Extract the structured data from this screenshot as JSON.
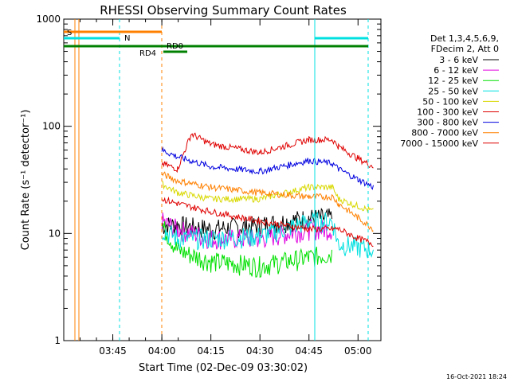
{
  "chart_data": {
    "type": "line",
    "title": "RHESSI Observing Summary Count Rates",
    "xlabel": "Start Time (02-Dec-09 03:30:02)",
    "ylabel": "Count Rate (s⁻¹ detector⁻¹)",
    "yscale": "log",
    "ylim": [
      1,
      1000
    ],
    "xlim": [
      "03:30",
      "05:07"
    ],
    "x_ticks": [
      "03:45",
      "04:00",
      "04:15",
      "04:30",
      "04:45",
      "05:00"
    ],
    "y_ticks": [
      "1",
      "10",
      "100",
      "1000"
    ],
    "legend": {
      "position": "right",
      "header": [
        "Det 1,3,4,5,6,9,",
        "FDecim 2, Att 0"
      ]
    },
    "series": [
      {
        "name": "3 - 6 keV",
        "color": "#000000",
        "values": [
          [
            4.0,
            12
          ],
          [
            4.08,
            12
          ],
          [
            4.25,
            11
          ],
          [
            4.5,
            12
          ],
          [
            4.75,
            14
          ],
          [
            4.87,
            14
          ]
        ]
      },
      {
        "name": "6 - 12 keV",
        "color": "#e000e0",
        "values": [
          [
            4.0,
            13
          ],
          [
            4.08,
            11
          ],
          [
            4.25,
            9
          ],
          [
            4.5,
            9
          ],
          [
            4.75,
            11
          ],
          [
            4.87,
            11
          ]
        ]
      },
      {
        "name": "12 - 25 keV",
        "color": "#00e000",
        "values": [
          [
            4.0,
            12
          ],
          [
            4.08,
            7
          ],
          [
            4.25,
            5.5
          ],
          [
            4.5,
            5
          ],
          [
            4.75,
            6
          ],
          [
            4.87,
            6.5
          ]
        ]
      },
      {
        "name": "25 - 50 keV",
        "color": "#00e0e0",
        "values": [
          [
            4.0,
            11
          ],
          [
            4.08,
            9
          ],
          [
            4.25,
            9
          ],
          [
            4.5,
            9.5
          ],
          [
            4.75,
            13
          ],
          [
            4.87,
            13
          ],
          [
            4.9,
            8
          ],
          [
            5.0,
            7.5
          ],
          [
            5.08,
            7
          ]
        ]
      },
      {
        "name": "50 - 100 keV",
        "color": "#d8d800",
        "values": [
          [
            4.0,
            29
          ],
          [
            4.08,
            24
          ],
          [
            4.25,
            21
          ],
          [
            4.5,
            21
          ],
          [
            4.75,
            27
          ],
          [
            4.87,
            27
          ],
          [
            4.9,
            21
          ],
          [
            5.0,
            18
          ],
          [
            5.08,
            16
          ]
        ]
      },
      {
        "name": "100 - 300 keV",
        "color": "#e00000",
        "values": [
          [
            4.0,
            45
          ],
          [
            4.08,
            40
          ],
          [
            4.15,
            85
          ],
          [
            4.25,
            68
          ],
          [
            4.5,
            57
          ],
          [
            4.75,
            75
          ],
          [
            4.87,
            75
          ],
          [
            4.9,
            65
          ],
          [
            5.0,
            50
          ],
          [
            5.08,
            42
          ]
        ]
      },
      {
        "name": "300 - 800 keV",
        "color": "#0000e0",
        "values": [
          [
            4.0,
            60
          ],
          [
            4.08,
            52
          ],
          [
            4.25,
            42
          ],
          [
            4.5,
            38
          ],
          [
            4.75,
            48
          ],
          [
            4.87,
            45
          ],
          [
            4.9,
            40
          ],
          [
            5.0,
            32
          ],
          [
            5.08,
            27
          ]
        ]
      },
      {
        "name": "800 - 7000 keV",
        "color": "#ff8000",
        "values": [
          [
            4.0,
            36
          ],
          [
            4.08,
            31
          ],
          [
            4.25,
            27
          ],
          [
            4.5,
            24
          ],
          [
            4.75,
            22
          ],
          [
            4.87,
            22
          ],
          [
            4.9,
            19
          ],
          [
            5.0,
            14
          ],
          [
            5.08,
            11
          ]
        ]
      },
      {
        "name": "7000 - 15000 keV",
        "color": "#e00000",
        "values": [
          [
            4.0,
            21
          ],
          [
            4.08,
            19
          ],
          [
            4.25,
            16
          ],
          [
            4.5,
            13
          ],
          [
            4.75,
            11
          ],
          [
            4.87,
            11
          ],
          [
            4.9,
            11
          ],
          [
            5.0,
            9
          ],
          [
            5.08,
            8
          ]
        ]
      }
    ],
    "annotations": {
      "bars": [
        {
          "label": "S",
          "color": "#ff8000"
        },
        {
          "label": "N",
          "color": "#00e0e0"
        },
        {
          "label": "RD4",
          "color": "#008000"
        },
        {
          "label": "RD0",
          "color": "#008000"
        }
      ]
    }
  },
  "timestamp": "16-Oct-2021 18:24"
}
